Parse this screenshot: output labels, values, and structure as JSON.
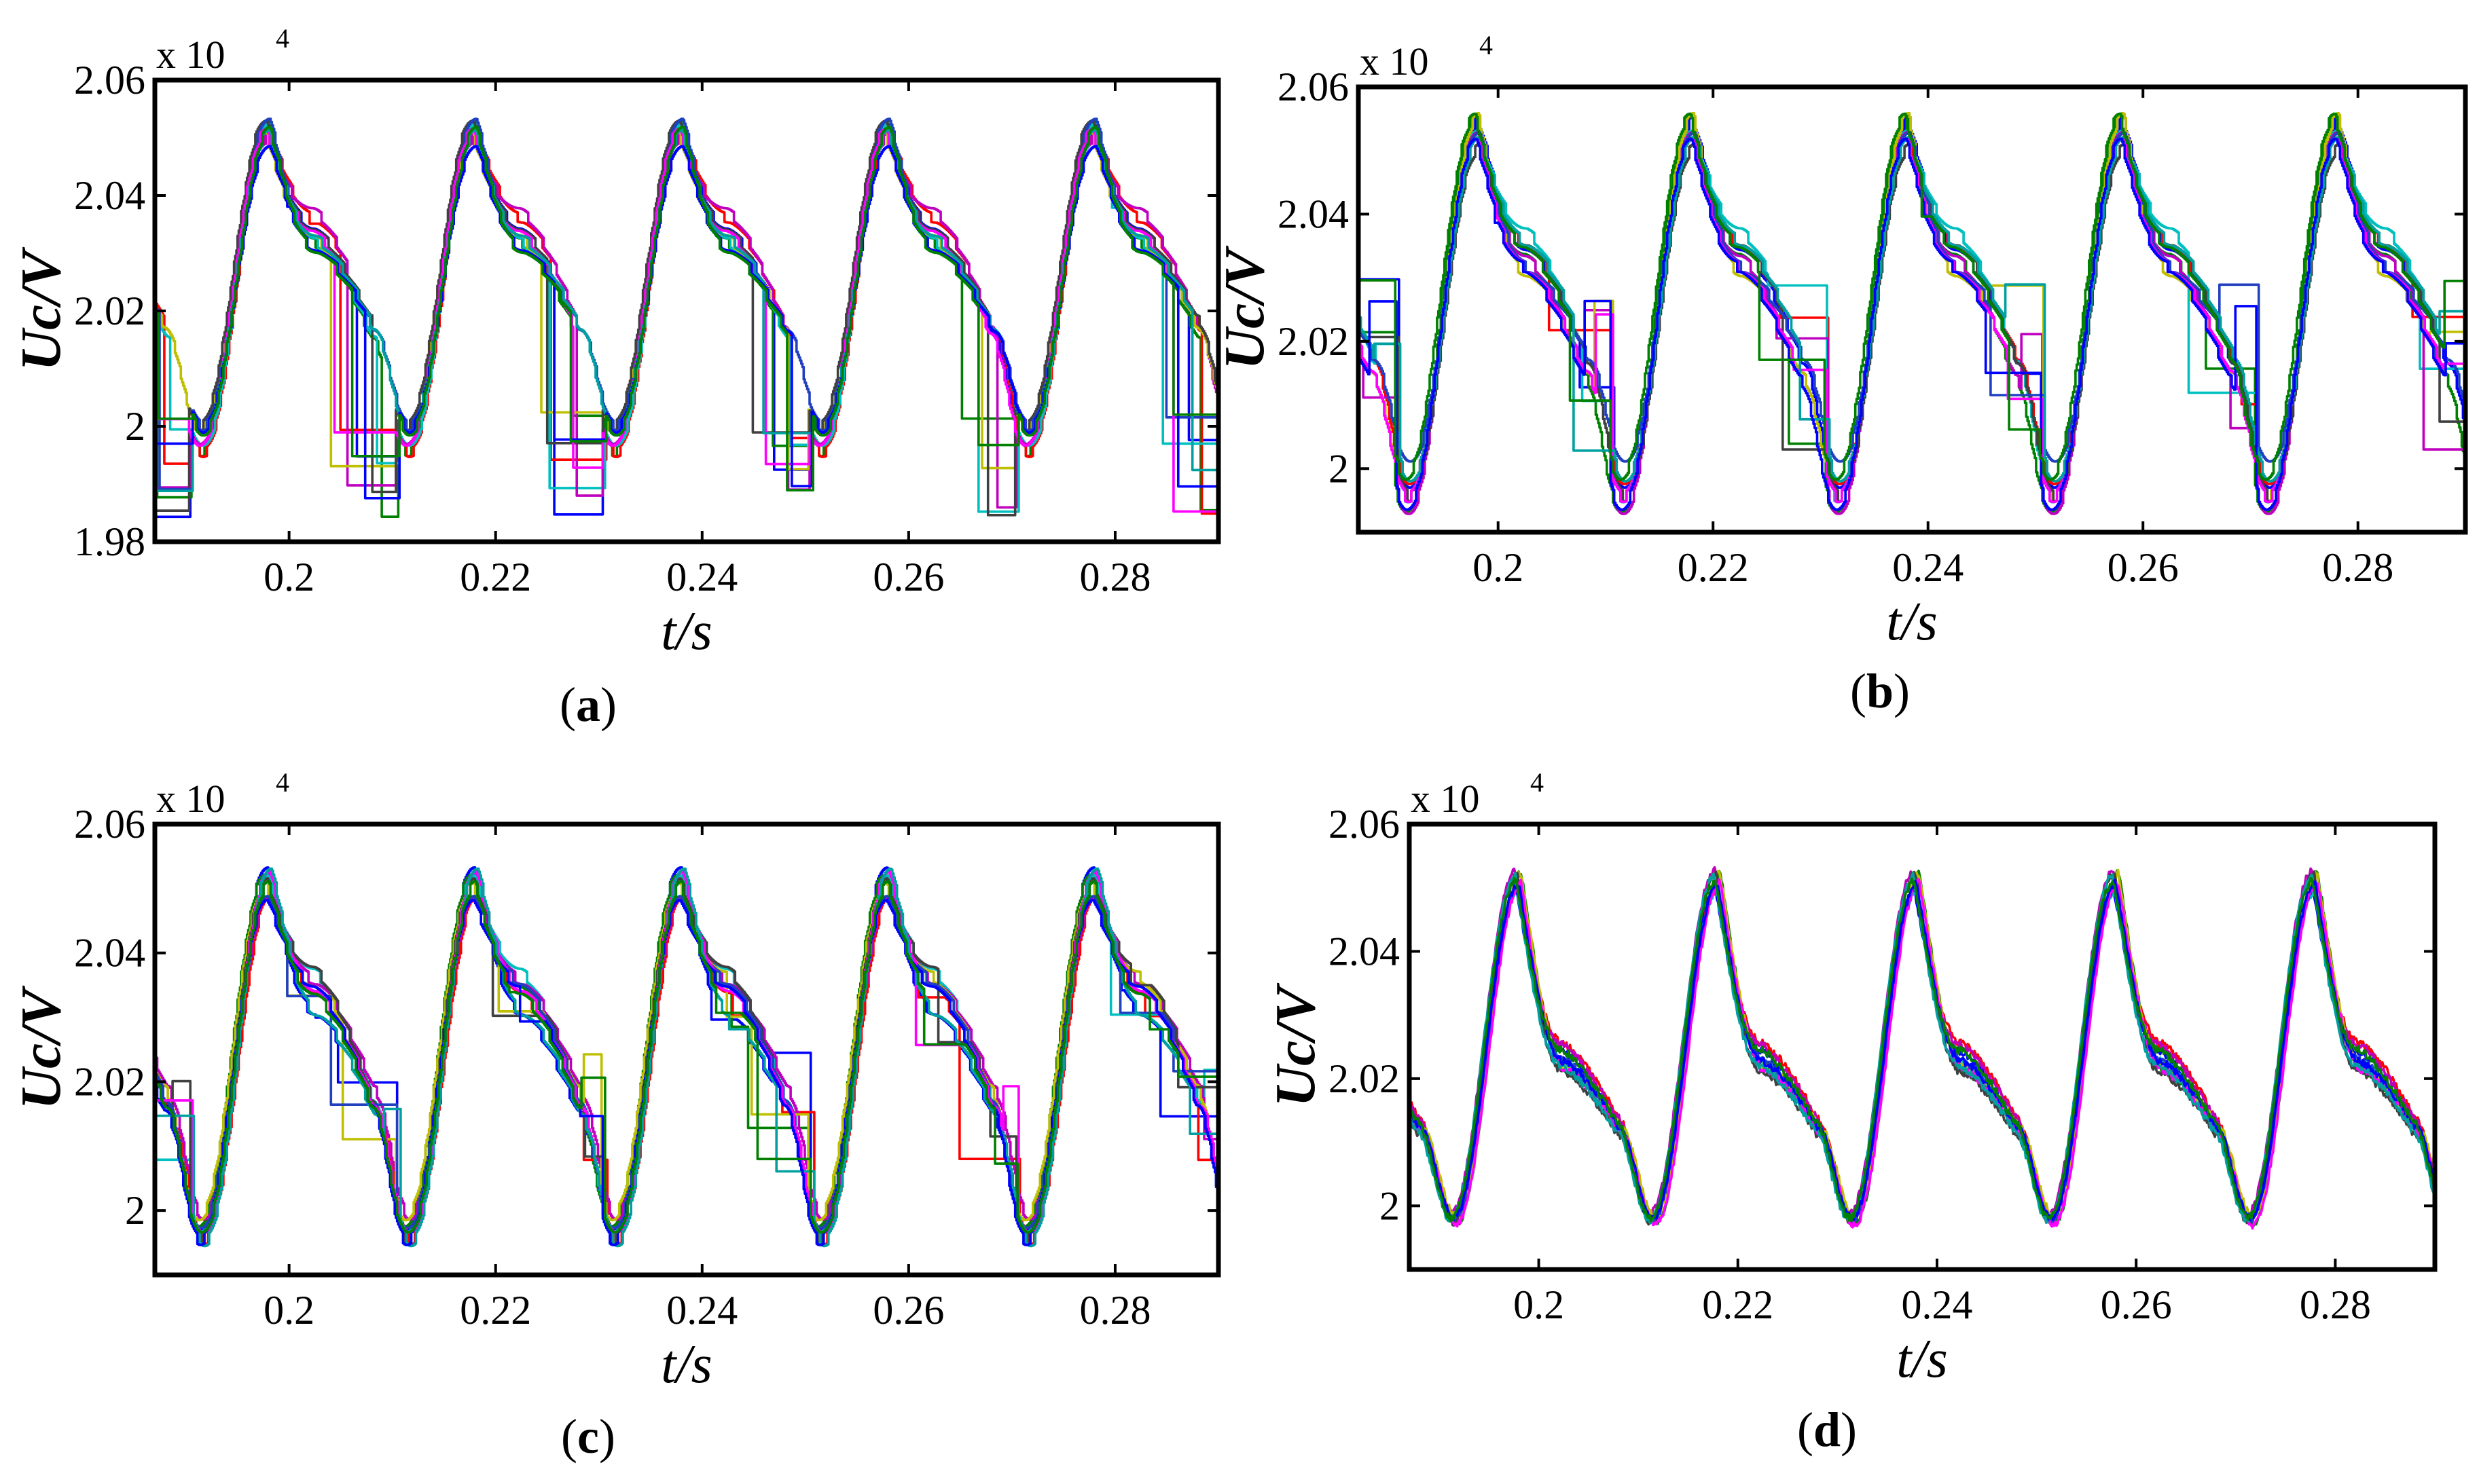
{
  "figure": {
    "description_free": true
  },
  "colors": [
    "#0000ff",
    "#008000",
    "#ff0000",
    "#00bfbf",
    "#bf00bf",
    "#bfbf00",
    "#404040",
    "#2040c0",
    "#ff00ff",
    "#00a0a0"
  ],
  "chart_data": [
    {
      "type": "line",
      "panel": "a",
      "panel_label": [
        "(",
        "a",
        ")"
      ],
      "xlabel": "t/s",
      "ylabel": "Uc/V",
      "y_multiplier": "x 10",
      "y_multiplier_exp": "4",
      "xlim": [
        0.187,
        0.29
      ],
      "ylim": [
        1.98,
        2.06
      ],
      "xticks": [
        0.2,
        0.22,
        0.24,
        0.26,
        0.28
      ],
      "xtick_labels": [
        "0.2",
        "0.22",
        "0.24",
        "0.26",
        "0.28"
      ],
      "yticks": [
        1.98,
        2.0,
        2.02,
        2.04,
        2.06
      ],
      "ytick_labels": [
        "1.98",
        "2",
        "2.02",
        "2.04",
        "2.06"
      ],
      "series_count": 12,
      "trough_times": [
        0.1915,
        0.2115,
        0.2315,
        0.2515,
        0.2715
      ],
      "peak_times": [
        0.198,
        0.218,
        0.238,
        0.258,
        0.278
      ],
      "peak_range": [
        2.049,
        2.056
      ],
      "trough_range": [
        1.995,
        2.0
      ],
      "hold_low_range": [
        1.984,
        2.003
      ],
      "hold_high_range": [
        2.035,
        2.055
      ],
      "hold_fraction": 0.85,
      "shape": "staircase"
    },
    {
      "type": "line",
      "panel": "b",
      "panel_label": [
        "(",
        "b",
        ")"
      ],
      "xlabel": "t/s",
      "ylabel": "Uc/V",
      "y_multiplier": "x 10",
      "y_multiplier_exp": "4",
      "xlim": [
        0.187,
        0.29
      ],
      "ylim": [
        1.99,
        2.06
      ],
      "xticks": [
        0.2,
        0.22,
        0.24,
        0.26,
        0.28
      ],
      "xtick_labels": [
        "0.2",
        "0.22",
        "0.24",
        "0.26",
        "0.28"
      ],
      "yticks": [
        2.0,
        2.02,
        2.04,
        2.06
      ],
      "ytick_labels": [
        "2",
        "2.02",
        "2.04",
        "2.06"
      ],
      "series_count": 12,
      "trough_times": [
        0.1915,
        0.2115,
        0.2315,
        0.2515,
        0.2715
      ],
      "peak_times": [
        0.198,
        0.218,
        0.238,
        0.258,
        0.278
      ],
      "peak_range": [
        2.05,
        2.056
      ],
      "trough_range": [
        1.992,
        2.001
      ],
      "hold_low_range": [
        2.003,
        2.03
      ],
      "hold_high_range": [
        2.036,
        2.052
      ],
      "hold_fraction": 0.75,
      "shape": "staircase"
    },
    {
      "type": "line",
      "panel": "c",
      "panel_label": [
        "(",
        "c",
        ")"
      ],
      "xlabel": "t/s",
      "ylabel": "Uc/V",
      "y_multiplier": "x 10",
      "y_multiplier_exp": "4",
      "xlim": [
        0.187,
        0.29
      ],
      "ylim": [
        1.99,
        2.06
      ],
      "xticks": [
        0.2,
        0.22,
        0.24,
        0.26,
        0.28
      ],
      "xtick_labels": [
        "0.2",
        "0.22",
        "0.24",
        "0.26",
        "0.28"
      ],
      "yticks": [
        2.0,
        2.02,
        2.04,
        2.06
      ],
      "ytick_labels": [
        "2",
        "2.02",
        "2.04",
        "2.06"
      ],
      "series_count": 12,
      "trough_times": [
        0.1915,
        0.2115,
        0.2315,
        0.2515,
        0.2715
      ],
      "peak_times": [
        0.198,
        0.218,
        0.238,
        0.258,
        0.278
      ],
      "peak_range": [
        2.048,
        2.055
      ],
      "trough_range": [
        1.994,
        1.999
      ],
      "hold_low_range": [
        2.005,
        2.025
      ],
      "hold_high_range": [
        2.026,
        2.036
      ],
      "hold_fraction": 0.45,
      "shape": "staircase"
    },
    {
      "type": "line",
      "panel": "d",
      "panel_label": [
        "(",
        "d",
        ")"
      ],
      "xlabel": "t/s",
      "ylabel": "Uc/V",
      "y_multiplier": "x 10",
      "y_multiplier_exp": "4",
      "xlim": [
        0.187,
        0.29
      ],
      "ylim": [
        1.99,
        2.06
      ],
      "xticks": [
        0.2,
        0.22,
        0.24,
        0.26,
        0.28
      ],
      "xtick_labels": [
        "0.2",
        "0.22",
        "0.24",
        "0.26",
        "0.28"
      ],
      "yticks": [
        2.0,
        2.02,
        2.04,
        2.06
      ],
      "ytick_labels": [
        "2",
        "2.02",
        "2.04",
        "2.06"
      ],
      "series_count": 12,
      "trough_times": [
        0.1915,
        0.2115,
        0.2315,
        0.2515,
        0.2715
      ],
      "peak_times": [
        0.198,
        0.218,
        0.238,
        0.258,
        0.278
      ],
      "peak_range": [
        2.049,
        2.053
      ],
      "trough_range": [
        1.997,
        1.999
      ],
      "shoulder_range": [
        2.021,
        2.026
      ],
      "shape": "smooth"
    }
  ]
}
